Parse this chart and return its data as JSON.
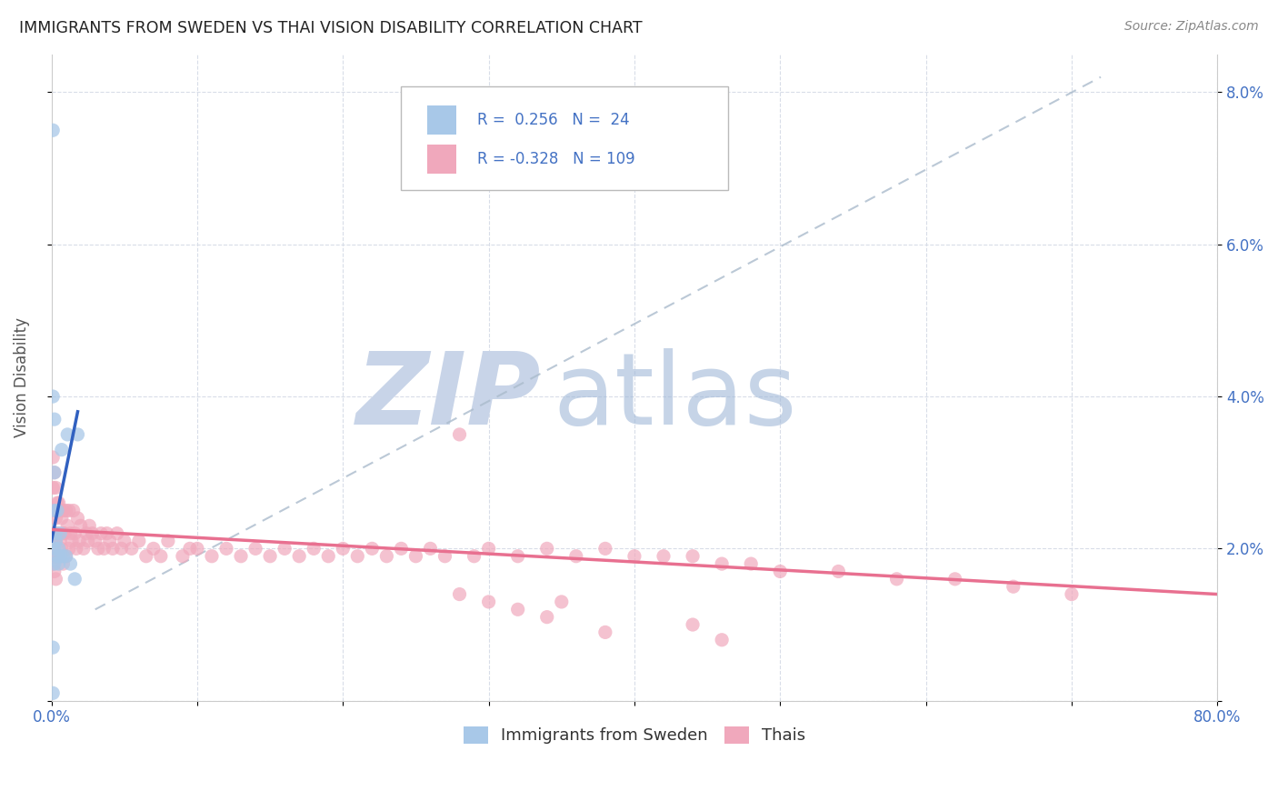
{
  "title": "IMMIGRANTS FROM SWEDEN VS THAI VISION DISABILITY CORRELATION CHART",
  "source": "Source: ZipAtlas.com",
  "ylabel": "Vision Disability",
  "xlim": [
    0.0,
    0.8
  ],
  "ylim": [
    0.0,
    0.085
  ],
  "ytick_positions": [
    0.0,
    0.02,
    0.04,
    0.06,
    0.08
  ],
  "ytick_labels": [
    "",
    "2.0%",
    "4.0%",
    "6.0%",
    "8.0%"
  ],
  "xtick_positions": [
    0.0,
    0.1,
    0.2,
    0.3,
    0.4,
    0.5,
    0.6,
    0.7,
    0.8
  ],
  "xtick_labels": [
    "0.0%",
    "",
    "",
    "",
    "",
    "",
    "",
    "",
    "80.0%"
  ],
  "sweden_color": "#a8c8e8",
  "thai_color": "#f0a8bc",
  "sweden_line_color": "#3060c0",
  "thai_line_color": "#e87090",
  "dashed_line_color": "#aabbcc",
  "background_color": "#ffffff",
  "grid_color": "#d8dde8",
  "legend_r_sweden": "0.256",
  "legend_n_sweden": "24",
  "legend_r_thai": "-0.328",
  "legend_n_thai": "109",
  "legend_text_color": "#4472c4",
  "title_color": "#222222",
  "source_color": "#888888",
  "ylabel_color": "#555555",
  "tick_color": "#4472c4",
  "watermark_zip_color": "#c8d4e8",
  "watermark_atlas_color": "#a0b8d8",
  "sweden_x": [
    0.001,
    0.001,
    0.001,
    0.002,
    0.002,
    0.002,
    0.002,
    0.003,
    0.003,
    0.004,
    0.004,
    0.005,
    0.005,
    0.006,
    0.006,
    0.007,
    0.008,
    0.01,
    0.011,
    0.013,
    0.016,
    0.018,
    0.001,
    0.002
  ],
  "sweden_y": [
    0.075,
    0.04,
    0.007,
    0.037,
    0.025,
    0.02,
    0.018,
    0.022,
    0.021,
    0.025,
    0.019,
    0.02,
    0.018,
    0.022,
    0.019,
    0.033,
    0.019,
    0.019,
    0.035,
    0.018,
    0.016,
    0.035,
    0.001,
    0.03
  ],
  "thai_x": [
    0.001,
    0.001,
    0.001,
    0.001,
    0.001,
    0.002,
    0.002,
    0.002,
    0.002,
    0.002,
    0.003,
    0.003,
    0.003,
    0.003,
    0.003,
    0.004,
    0.004,
    0.004,
    0.005,
    0.005,
    0.005,
    0.006,
    0.006,
    0.007,
    0.007,
    0.008,
    0.008,
    0.008,
    0.009,
    0.01,
    0.01,
    0.011,
    0.012,
    0.012,
    0.013,
    0.014,
    0.015,
    0.016,
    0.017,
    0.018,
    0.019,
    0.02,
    0.022,
    0.024,
    0.025,
    0.026,
    0.028,
    0.03,
    0.032,
    0.034,
    0.036,
    0.038,
    0.04,
    0.042,
    0.045,
    0.048,
    0.05,
    0.055,
    0.06,
    0.065,
    0.07,
    0.075,
    0.08,
    0.09,
    0.095,
    0.1,
    0.11,
    0.12,
    0.13,
    0.14,
    0.15,
    0.16,
    0.17,
    0.18,
    0.19,
    0.2,
    0.21,
    0.22,
    0.23,
    0.24,
    0.25,
    0.26,
    0.27,
    0.28,
    0.29,
    0.3,
    0.32,
    0.34,
    0.36,
    0.38,
    0.4,
    0.42,
    0.44,
    0.46,
    0.48,
    0.5,
    0.54,
    0.58,
    0.62,
    0.66,
    0.7,
    0.44,
    0.46,
    0.28,
    0.3,
    0.32,
    0.34,
    0.35,
    0.38
  ],
  "thai_y": [
    0.032,
    0.028,
    0.025,
    0.022,
    0.018,
    0.03,
    0.025,
    0.022,
    0.019,
    0.017,
    0.028,
    0.024,
    0.021,
    0.019,
    0.016,
    0.026,
    0.022,
    0.019,
    0.026,
    0.022,
    0.019,
    0.025,
    0.021,
    0.024,
    0.02,
    0.025,
    0.022,
    0.018,
    0.022,
    0.025,
    0.019,
    0.023,
    0.025,
    0.02,
    0.022,
    0.021,
    0.025,
    0.022,
    0.02,
    0.024,
    0.021,
    0.023,
    0.02,
    0.022,
    0.021,
    0.023,
    0.022,
    0.021,
    0.02,
    0.022,
    0.02,
    0.022,
    0.021,
    0.02,
    0.022,
    0.02,
    0.021,
    0.02,
    0.021,
    0.019,
    0.02,
    0.019,
    0.021,
    0.019,
    0.02,
    0.02,
    0.019,
    0.02,
    0.019,
    0.02,
    0.019,
    0.02,
    0.019,
    0.02,
    0.019,
    0.02,
    0.019,
    0.02,
    0.019,
    0.02,
    0.019,
    0.02,
    0.019,
    0.035,
    0.019,
    0.02,
    0.019,
    0.02,
    0.019,
    0.02,
    0.019,
    0.019,
    0.019,
    0.018,
    0.018,
    0.017,
    0.017,
    0.016,
    0.016,
    0.015,
    0.014,
    0.01,
    0.008,
    0.014,
    0.013,
    0.012,
    0.011,
    0.013,
    0.009
  ],
  "sweden_line_x": [
    0.0,
    0.018
  ],
  "sweden_line_y": [
    0.021,
    0.038
  ],
  "thai_line_x": [
    0.0,
    0.8
  ],
  "thai_line_y": [
    0.0225,
    0.014
  ],
  "dash_line_x": [
    0.03,
    0.72
  ],
  "dash_line_y": [
    0.012,
    0.082
  ]
}
